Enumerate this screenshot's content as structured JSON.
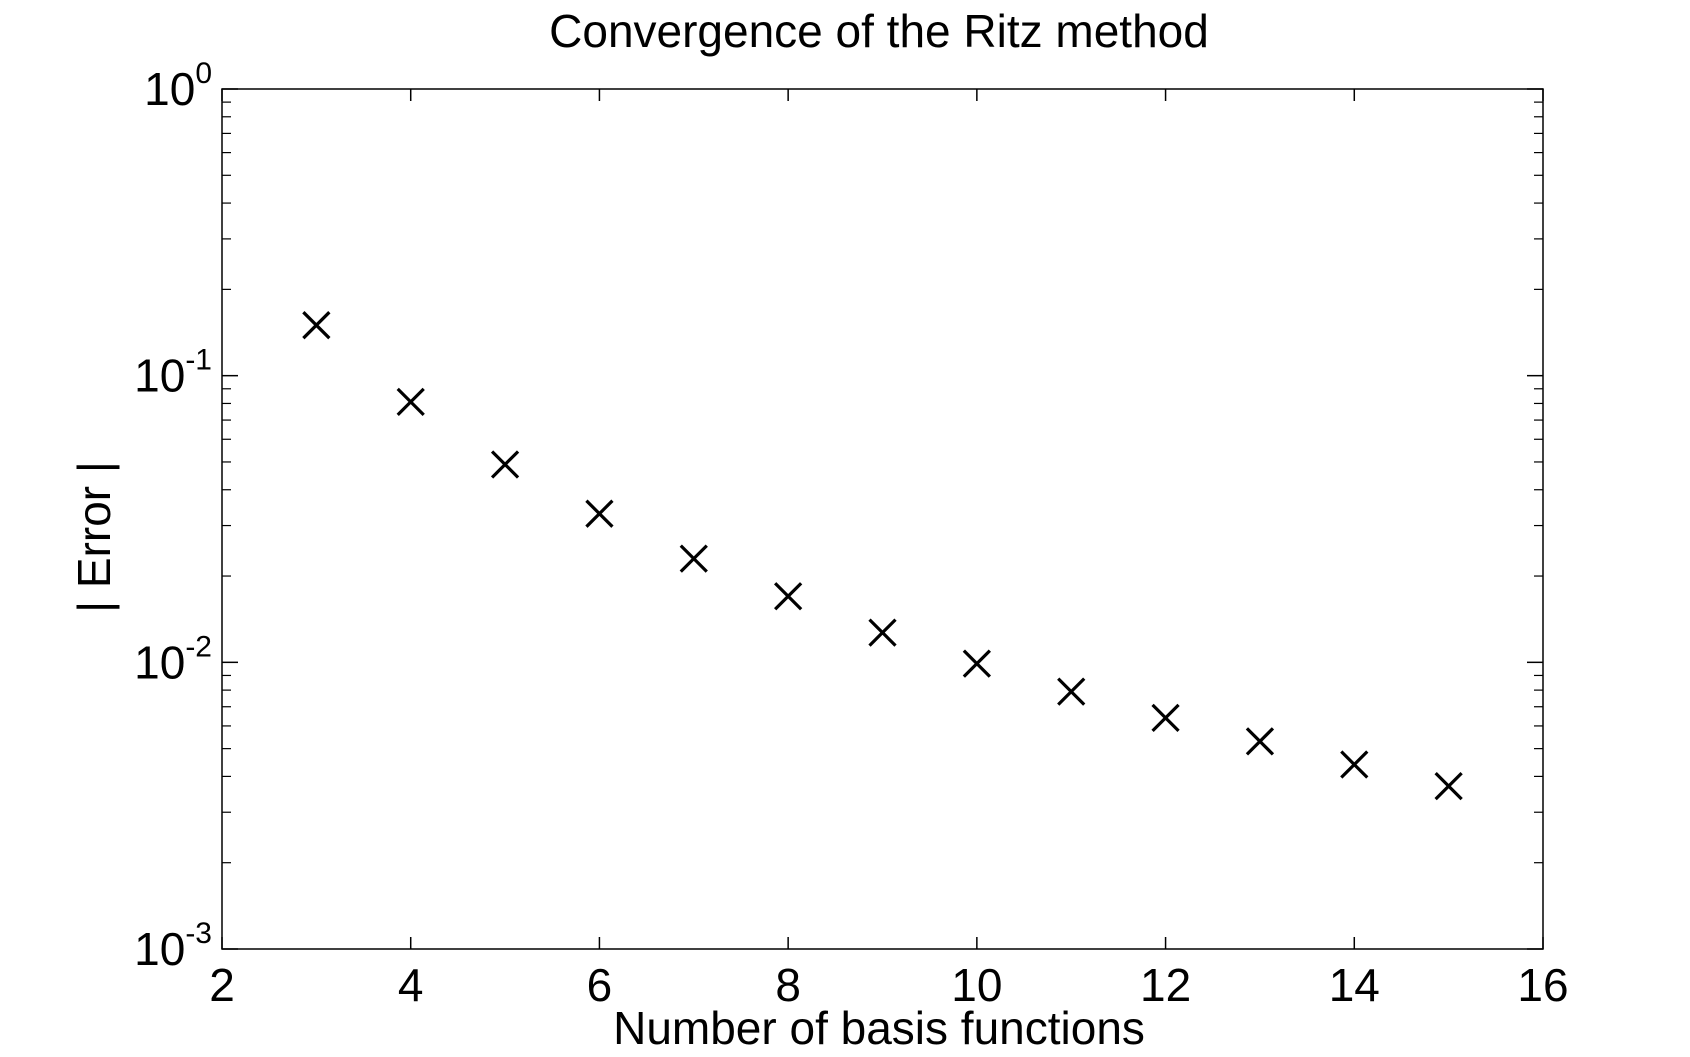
{
  "chart_data": {
    "type": "scatter",
    "title": "Convergence of the Ritz method",
    "xlabel": "Number of basis functions",
    "ylabel": "| Error |",
    "xlim": [
      2,
      16
    ],
    "ylim": [
      0.001,
      1
    ],
    "yscale": "log",
    "grid": false,
    "marker": "x",
    "marker_color": "#000000",
    "xticks": [
      2,
      4,
      6,
      8,
      10,
      12,
      14,
      16
    ],
    "xtick_labels": [
      "2",
      "4",
      "6",
      "8",
      "10",
      "12",
      "14",
      "16"
    ],
    "yticks": [
      {
        "value": 1,
        "base": "10",
        "exp": "0"
      },
      {
        "value": 0.1,
        "base": "10",
        "exp": "-1"
      },
      {
        "value": 0.01,
        "base": "10",
        "exp": "-2"
      },
      {
        "value": 0.001,
        "base": "10",
        "exp": "-3"
      }
    ],
    "series": [
      {
        "x": [
          3,
          4,
          5,
          6,
          7,
          8,
          9,
          10,
          11,
          12,
          13,
          14,
          15
        ],
        "y": [
          0.15,
          0.081,
          0.049,
          0.033,
          0.023,
          0.017,
          0.0127,
          0.0099,
          0.0079,
          0.0064,
          0.0053,
          0.0044,
          0.0037
        ]
      }
    ]
  }
}
